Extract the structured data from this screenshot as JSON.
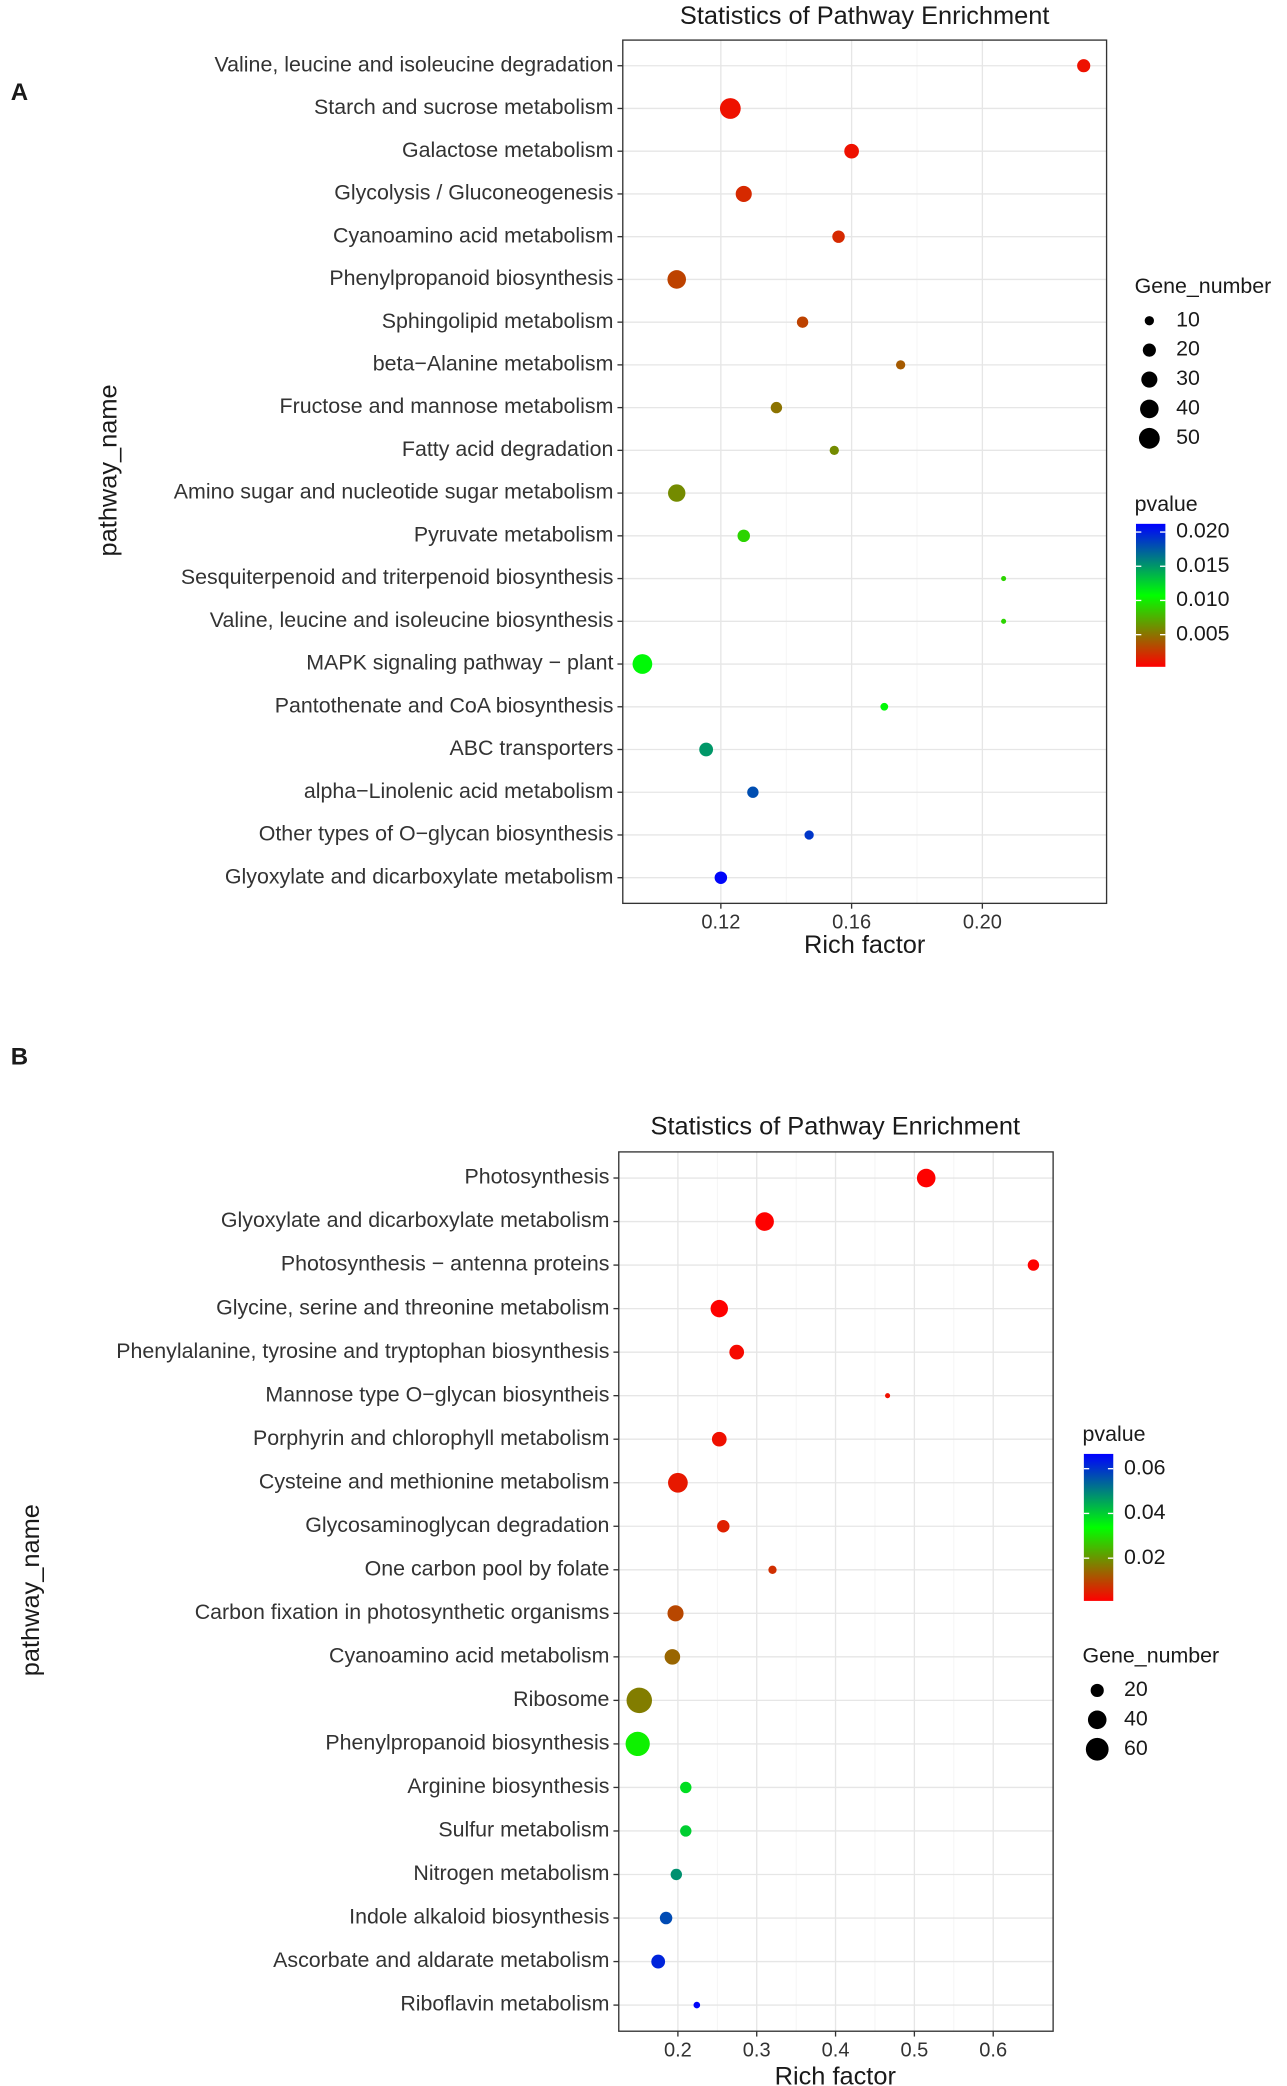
{
  "chart_data": [
    {
      "type": "scatter",
      "panel_label": "A",
      "title": "Statistics of Pathway Enrichment",
      "xlabel": "Rich factor",
      "ylabel": "pathway_name",
      "categories": [
        "Valine, leucine and isoleucine degradation",
        "Starch and sucrose metabolism",
        "Galactose metabolism",
        "Glycolysis / Gluconeogenesis",
        "Cyanoamino acid metabolism",
        "Phenylpropanoid biosynthesis",
        "Sphingolipid metabolism",
        "beta−Alanine metabolism",
        "Fructose and mannose metabolism",
        "Fatty acid degradation",
        "Amino sugar and nucleotide sugar metabolism",
        "Pyruvate metabolism",
        "Sesquiterpenoid and triterpenoid biosynthesis",
        "Valine, leucine and isoleucine biosynthesis",
        "MAPK signaling pathway − plant",
        "Pantothenate and CoA biosynthesis",
        "ABC transporters",
        "alpha−Linolenic acid metabolism",
        "Other types of O−glycan biosynthesis",
        "Glyoxylate and dicarboxylate metabolism"
      ],
      "values": [
        0.231,
        0.1229,
        0.16,
        0.127,
        0.156,
        0.1065,
        0.145,
        0.175,
        0.137,
        0.1547,
        0.1065,
        0.127,
        0.2065,
        0.2065,
        0.096,
        0.17,
        0.1155,
        0.1298,
        0.147,
        0.12
      ],
      "sizes": [
        20,
        50,
        25,
        30,
        18,
        40,
        15,
        10,
        15,
        10,
        35,
        18,
        3,
        3,
        45,
        7,
        22,
        15,
        10,
        18
      ],
      "pvalues": [
        0.001,
        0.001,
        0.001,
        0.002,
        0.002,
        0.003,
        0.003,
        0.004,
        0.005,
        0.006,
        0.006,
        0.009,
        0.009,
        0.009,
        0.011,
        0.011,
        0.015,
        0.018,
        0.019,
        0.021
      ],
      "xlim": [
        0.09,
        0.238
      ],
      "xticks": [
        0.12,
        0.16,
        {
          "value": 0.2,
          "label": "0.20"
        }
      ],
      "grid": true,
      "color_scale": [
        "#ff0000",
        "#00ff00",
        "#0000ff"
      ],
      "colorlim": [
        0.0003,
        0.0212
      ],
      "colorticks": [
        0.005,
        {
          "value": 0.01,
          "label": "0.010"
        },
        0.015,
        {
          "value": 0.02,
          "label": "0.020"
        }
      ],
      "color_legend_title": "pvalue",
      "size_legend": {
        "title": "Gene_number",
        "values": [
          10,
          20,
          30,
          40,
          50
        ]
      }
    },
    {
      "type": "scatter",
      "panel_label": "B",
      "title": "Statistics of Pathway Enrichment",
      "xlabel": "Rich factor",
      "ylabel": "pathway_name",
      "categories": [
        "Photosynthesis",
        "Glyoxylate and dicarboxylate metabolism",
        "Photosynthesis − antenna proteins",
        "Glycine, serine and threonine metabolism",
        "Phenylalanine, tyrosine and tryptophan biosynthesis",
        "Mannose type O−glycan biosyntheis",
        "Porphyrin and chlorophyll metabolism",
        "Cysteine and methionine metabolism",
        "Glycosaminoglycan degradation",
        "One carbon pool by folate",
        "Carbon fixation in photosynthetic organisms",
        "Cyanoamino acid metabolism",
        "Ribosome",
        "Phenylpropanoid biosynthesis",
        "Arginine biosynthesis",
        "Sulfur metabolism",
        "Nitrogen metabolism",
        "Indole alkaloid biosynthesis",
        "Ascorbate and aldarate metabolism",
        "Riboflavin metabolism"
      ],
      "values": [
        0.515,
        0.31,
        0.651,
        0.2525,
        0.2746,
        0.466,
        0.2525,
        0.2,
        0.2576,
        0.32,
        0.197,
        0.193,
        0.151,
        0.149,
        0.21,
        0.21,
        0.198,
        0.185,
        0.175,
        0.224
      ],
      "sizes": [
        40,
        40,
        15,
        35,
        25,
        3,
        25,
        45,
        18,
        8,
        30,
        28,
        75,
        68,
        15,
        15,
        15,
        18,
        22,
        5
      ],
      "pvalues": [
        0.001,
        0.001,
        0.001,
        0.001,
        0.002,
        0.003,
        0.003,
        0.004,
        0.005,
        0.007,
        0.01,
        0.014,
        0.017,
        0.032,
        0.038,
        0.04,
        0.048,
        0.057,
        0.062,
        0.066
      ],
      "xlim": [
        0.125,
        0.676
      ],
      "xticks": [
        0.2,
        0.3,
        0.4,
        0.5,
        0.6
      ],
      "grid": true,
      "color_scale": [
        "#ff0000",
        "#00ff00",
        "#0000ff"
      ],
      "colorlim": [
        0.0009,
        0.0666
      ],
      "colorticks": [
        0.02,
        0.04,
        0.06
      ],
      "color_legend_title": "pvalue",
      "size_legend": {
        "title": "Gene_number",
        "values": [
          20,
          40,
          60
        ]
      }
    }
  ]
}
